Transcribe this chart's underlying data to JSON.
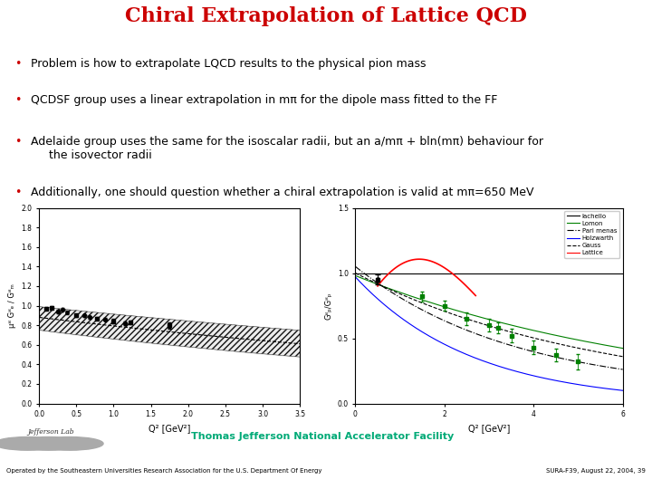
{
  "title": "Chiral Extrapolation of Lattice QCD",
  "title_color": "#cc0000",
  "title_fontsize": 16,
  "separator_color": "#006688",
  "bullet_color": "#cc0000",
  "bullet_symbol": "•",
  "bullets": [
    "Problem is how to extrapolate LQCD results to the physical pion mass",
    "QCDSF group uses a linear extrapolation in mπ for the dipole mass fitted to the FF",
    "Adelaide group uses the same for the isoscalar radii, but an a/mπ + bln(mπ) behaviour for\n     the isovector radii",
    "Additionally, one should question whether a chiral extrapolation is valid at mπ=650 MeV"
  ],
  "bullet_fontsize": 9.0,
  "bg_color": "#ffffff",
  "footer_bg_color": "#006688",
  "footer_text": "Thomas Jefferson National Accelerator Facility",
  "footer_text_color": "#00aa77",
  "footer_bottom_text": "Operated by the Southeastern Universities Research Association for the U.S. Department Of Energy",
  "footer_bottom_right": "SURA-F39, August 22, 2004, 39",
  "left_plot": {
    "xlim": [
      0.0,
      3.5
    ],
    "ylim": [
      0.0,
      2.0
    ],
    "xlabel": "Q² [GeV²]",
    "ylabel": "μᴽ Gᴽₑ / Gᴽₘ",
    "yticks": [
      0.0,
      0.2,
      0.4,
      0.6,
      0.8,
      1.0,
      1.2,
      1.4,
      1.6,
      1.8,
      2.0
    ],
    "xticks": [
      0.0,
      0.5,
      1.0,
      1.5,
      2.0,
      2.5,
      3.0,
      3.5
    ]
  },
  "right_plot": {
    "xlim": [
      0,
      6
    ],
    "ylim": [
      0.0,
      1.5
    ],
    "xlabel": "Q² [GeV²]",
    "ylabel": "Gᴽₚ/Gᴽₚ",
    "yticks": [
      0.0,
      0.5,
      1.0,
      1.5
    ],
    "xticks": [
      0,
      2,
      4,
      6
    ],
    "legend_labels": [
      "Iachello",
      "Lomon",
      "Pari menas",
      "Holzwarth",
      "Gauss",
      "Lattice"
    ],
    "legend_colors": [
      "black",
      "green",
      "black",
      "blue",
      "black",
      "red"
    ],
    "legend_styles": [
      "-",
      "-",
      "-.",
      "-",
      "--",
      "-"
    ]
  }
}
